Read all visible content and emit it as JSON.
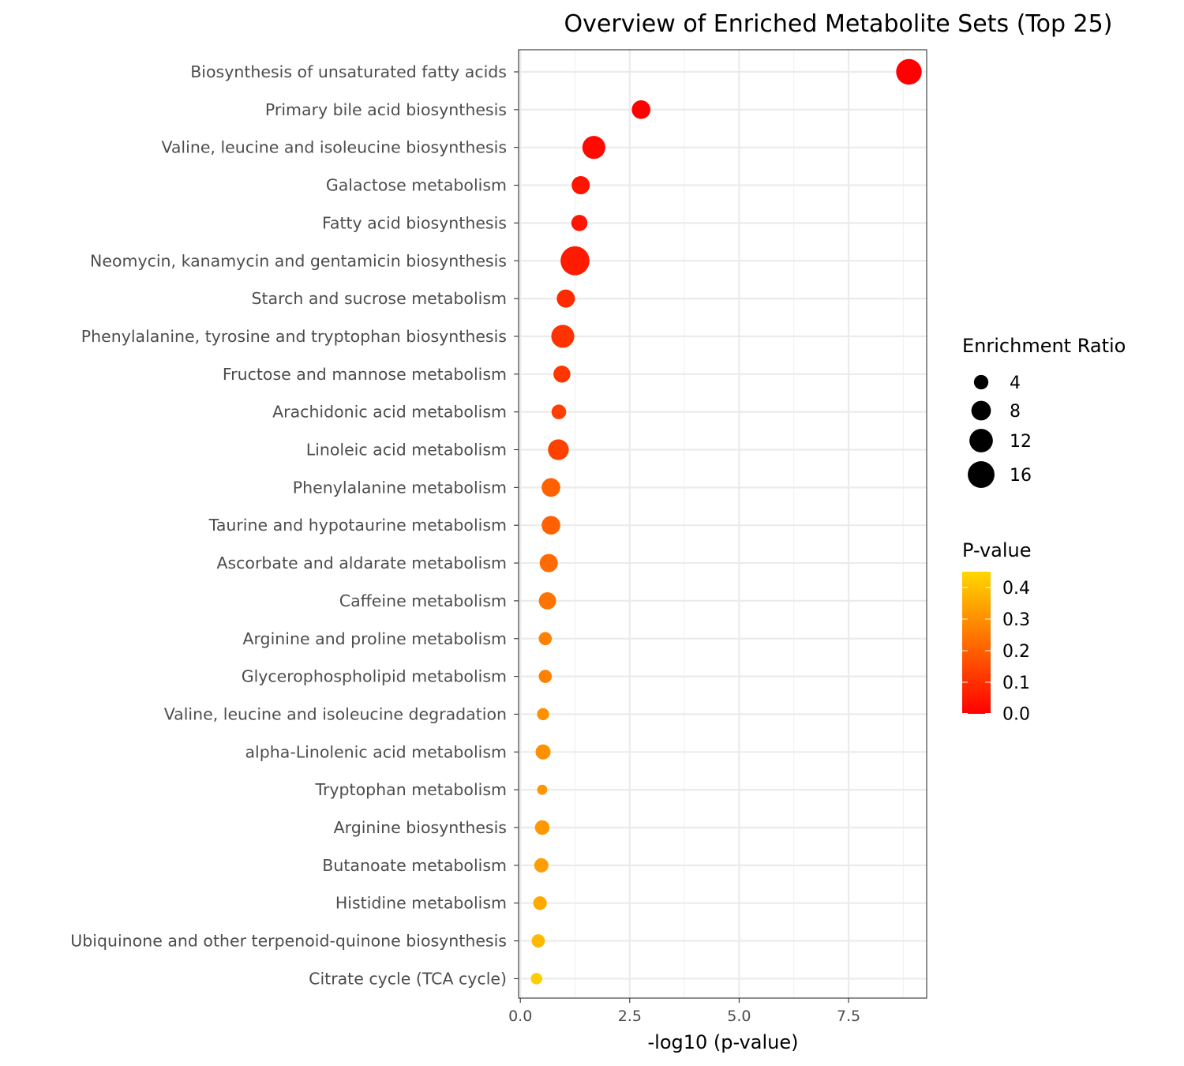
{
  "chart_data": {
    "type": "scatter",
    "title": "Overview of Enriched Metabolite Sets (Top 25)",
    "xlabel": "-log10 (p-value)",
    "ylabel": "",
    "xlim": [
      -0.05,
      9.3
    ],
    "xticks": [
      "0.0",
      "2.5",
      "5.0",
      "7.5"
    ],
    "grid": true,
    "legend_position": "right",
    "size_legend": {
      "title": "Enrichment Ratio",
      "values": [
        "4",
        "8",
        "12",
        "16"
      ]
    },
    "color_legend": {
      "title": "P-value",
      "ticks": [
        "0.4",
        "0.3",
        "0.2",
        "0.1",
        "0.0"
      ],
      "range": [
        0,
        0.45
      ],
      "colors": {
        "low": "#ff0000",
        "high": "#ffd700"
      }
    },
    "points": [
      {
        "name": "Biosynthesis of unsaturated fatty acids",
        "x": 8.88,
        "ratio": 14.5,
        "p": 0.0
      },
      {
        "name": "Primary bile acid biosynthesis",
        "x": 2.76,
        "ratio": 7.2,
        "p": 0.002
      },
      {
        "name": "Valine, leucine and isoleucine biosynthesis",
        "x": 1.68,
        "ratio": 11.5,
        "p": 0.021
      },
      {
        "name": "Galactose metabolism",
        "x": 1.38,
        "ratio": 6.8,
        "p": 0.042
      },
      {
        "name": "Fatty acid biosynthesis",
        "x": 1.35,
        "ratio": 5.2,
        "p": 0.045
      },
      {
        "name": "Neomycin, kanamycin and gentamicin biosynthesis",
        "x": 1.25,
        "ratio": 19.0,
        "p": 0.056
      },
      {
        "name": "Starch and sucrose metabolism",
        "x": 1.04,
        "ratio": 6.8,
        "p": 0.091
      },
      {
        "name": "Phenylalanine, tyrosine and tryptophan biosynthesis",
        "x": 0.97,
        "ratio": 11.5,
        "p": 0.107
      },
      {
        "name": "Fructose and mannose metabolism",
        "x": 0.95,
        "ratio": 5.8,
        "p": 0.112
      },
      {
        "name": "Arachidonic acid metabolism",
        "x": 0.88,
        "ratio": 4.1,
        "p": 0.132
      },
      {
        "name": "Linoleic acid metabolism",
        "x": 0.87,
        "ratio": 9.2,
        "p": 0.135
      },
      {
        "name": "Phenylalanine metabolism",
        "x": 0.7,
        "ratio": 7.2,
        "p": 0.2
      },
      {
        "name": "Taurine and hypotaurine metabolism",
        "x": 0.7,
        "ratio": 7.2,
        "p": 0.2
      },
      {
        "name": "Ascorbate and aldarate metabolism",
        "x": 0.65,
        "ratio": 6.8,
        "p": 0.224
      },
      {
        "name": "Caffeine metabolism",
        "x": 0.62,
        "ratio": 6.0,
        "p": 0.24
      },
      {
        "name": "Arginine and proline metabolism",
        "x": 0.57,
        "ratio": 3.2,
        "p": 0.269
      },
      {
        "name": "Glycerophospholipid metabolism",
        "x": 0.57,
        "ratio": 3.2,
        "p": 0.269
      },
      {
        "name": "Valine, leucine and isoleucine degradation",
        "x": 0.52,
        "ratio": 2.6,
        "p": 0.302
      },
      {
        "name": "alpha-Linolenic acid metabolism",
        "x": 0.52,
        "ratio": 4.4,
        "p": 0.302
      },
      {
        "name": "Tryptophan metabolism",
        "x": 0.5,
        "ratio": 1.7,
        "p": 0.316
      },
      {
        "name": "Arginine biosynthesis",
        "x": 0.5,
        "ratio": 4.1,
        "p": 0.316
      },
      {
        "name": "Butanoate metabolism",
        "x": 0.48,
        "ratio": 3.9,
        "p": 0.331
      },
      {
        "name": "Histidine metabolism",
        "x": 0.45,
        "ratio": 3.5,
        "p": 0.355
      },
      {
        "name": "Ubiquinone and other terpenoid-quinone biosynthesis",
        "x": 0.41,
        "ratio": 3.3,
        "p": 0.389
      },
      {
        "name": "Citrate cycle (TCA cycle)",
        "x": 0.37,
        "ratio": 2.3,
        "p": 0.427
      }
    ]
  }
}
